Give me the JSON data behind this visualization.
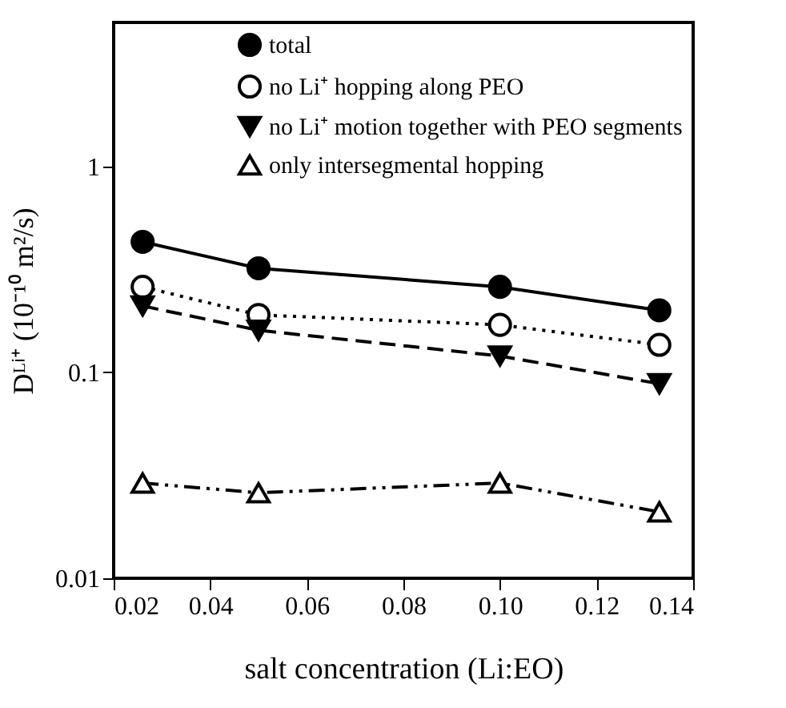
{
  "chart_data": {
    "type": "line",
    "xlabel": "salt concentration (Li:EO)",
    "ylabel": "Dᴸⁱ⁺ (10⁻¹⁰ m²/s)",
    "x": [
      0.026,
      0.05,
      0.1,
      0.133
    ],
    "series": [
      {
        "name": "total",
        "color": "#000000",
        "values": [
          0.43,
          0.32,
          0.26,
          0.2
        ],
        "marker": "circle",
        "line_style": "solid"
      },
      {
        "name": "no Li⁺ hopping along PEO",
        "color": "#000000",
        "values": [
          0.26,
          0.19,
          0.17,
          0.136
        ],
        "marker": "circle-open",
        "line_style": "dotted"
      },
      {
        "name": "no Li⁺ motion together with PEO segments",
        "color": "#000000",
        "values": [
          0.21,
          0.16,
          0.12,
          0.088
        ],
        "marker": "triangle-down",
        "line_style": "dashed"
      },
      {
        "name": "only intersegmental hopping",
        "color": "#000000",
        "values": [
          0.029,
          0.026,
          0.029,
          0.021
        ],
        "marker": "triangle-open",
        "line_style": "dashdot"
      }
    ],
    "xlim": [
      0.02,
      0.14
    ],
    "xticks": [
      0.02,
      0.04,
      0.06,
      0.08,
      {
        "value": 0.1,
        "label": "0.10"
      },
      0.12,
      0.14
    ],
    "ylim": [
      0.01,
      5
    ],
    "yticks": [
      0.01,
      0.1,
      1
    ],
    "log": true,
    "grid": false,
    "legend": "top right"
  }
}
